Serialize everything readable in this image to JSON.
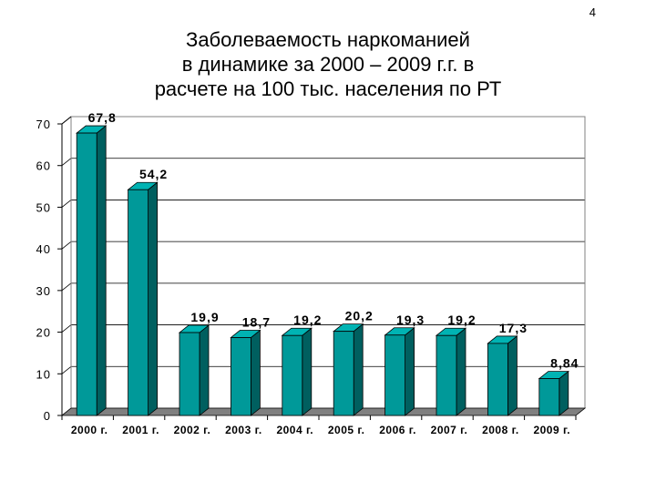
{
  "page_number": "4",
  "chart_data": {
    "type": "bar",
    "title_lines": [
      "Заболеваемость наркоманией",
      "в динамике за 2000 – 2009 г.г. в",
      "расчете на 100 тыс. населения по РТ"
    ],
    "categories": [
      "2000 г.",
      "2001 г.",
      "2002 г.",
      "2003 г.",
      "2004 г.",
      "2005 г.",
      "2006 г.",
      "2007 г.",
      "2008 г.",
      "2009 г."
    ],
    "values": [
      67.8,
      54.2,
      19.9,
      18.7,
      19.2,
      20.2,
      19.3,
      19.2,
      17.3,
      8.84
    ],
    "data_labels": [
      "67,8",
      "54,2",
      "19,9",
      "18,7",
      "19,2",
      "20,2",
      "19,3",
      "19,2",
      "17,3",
      "8,84"
    ],
    "yticks": [
      "0",
      "10",
      "20",
      "30",
      "40",
      "50",
      "60",
      "70"
    ],
    "ylim": [
      0,
      70
    ],
    "grid": true,
    "bar_color": "#009999",
    "bar_side_color": "#005f5f",
    "bar_top_color": "#00b3b3",
    "floor_color": "#808080"
  }
}
